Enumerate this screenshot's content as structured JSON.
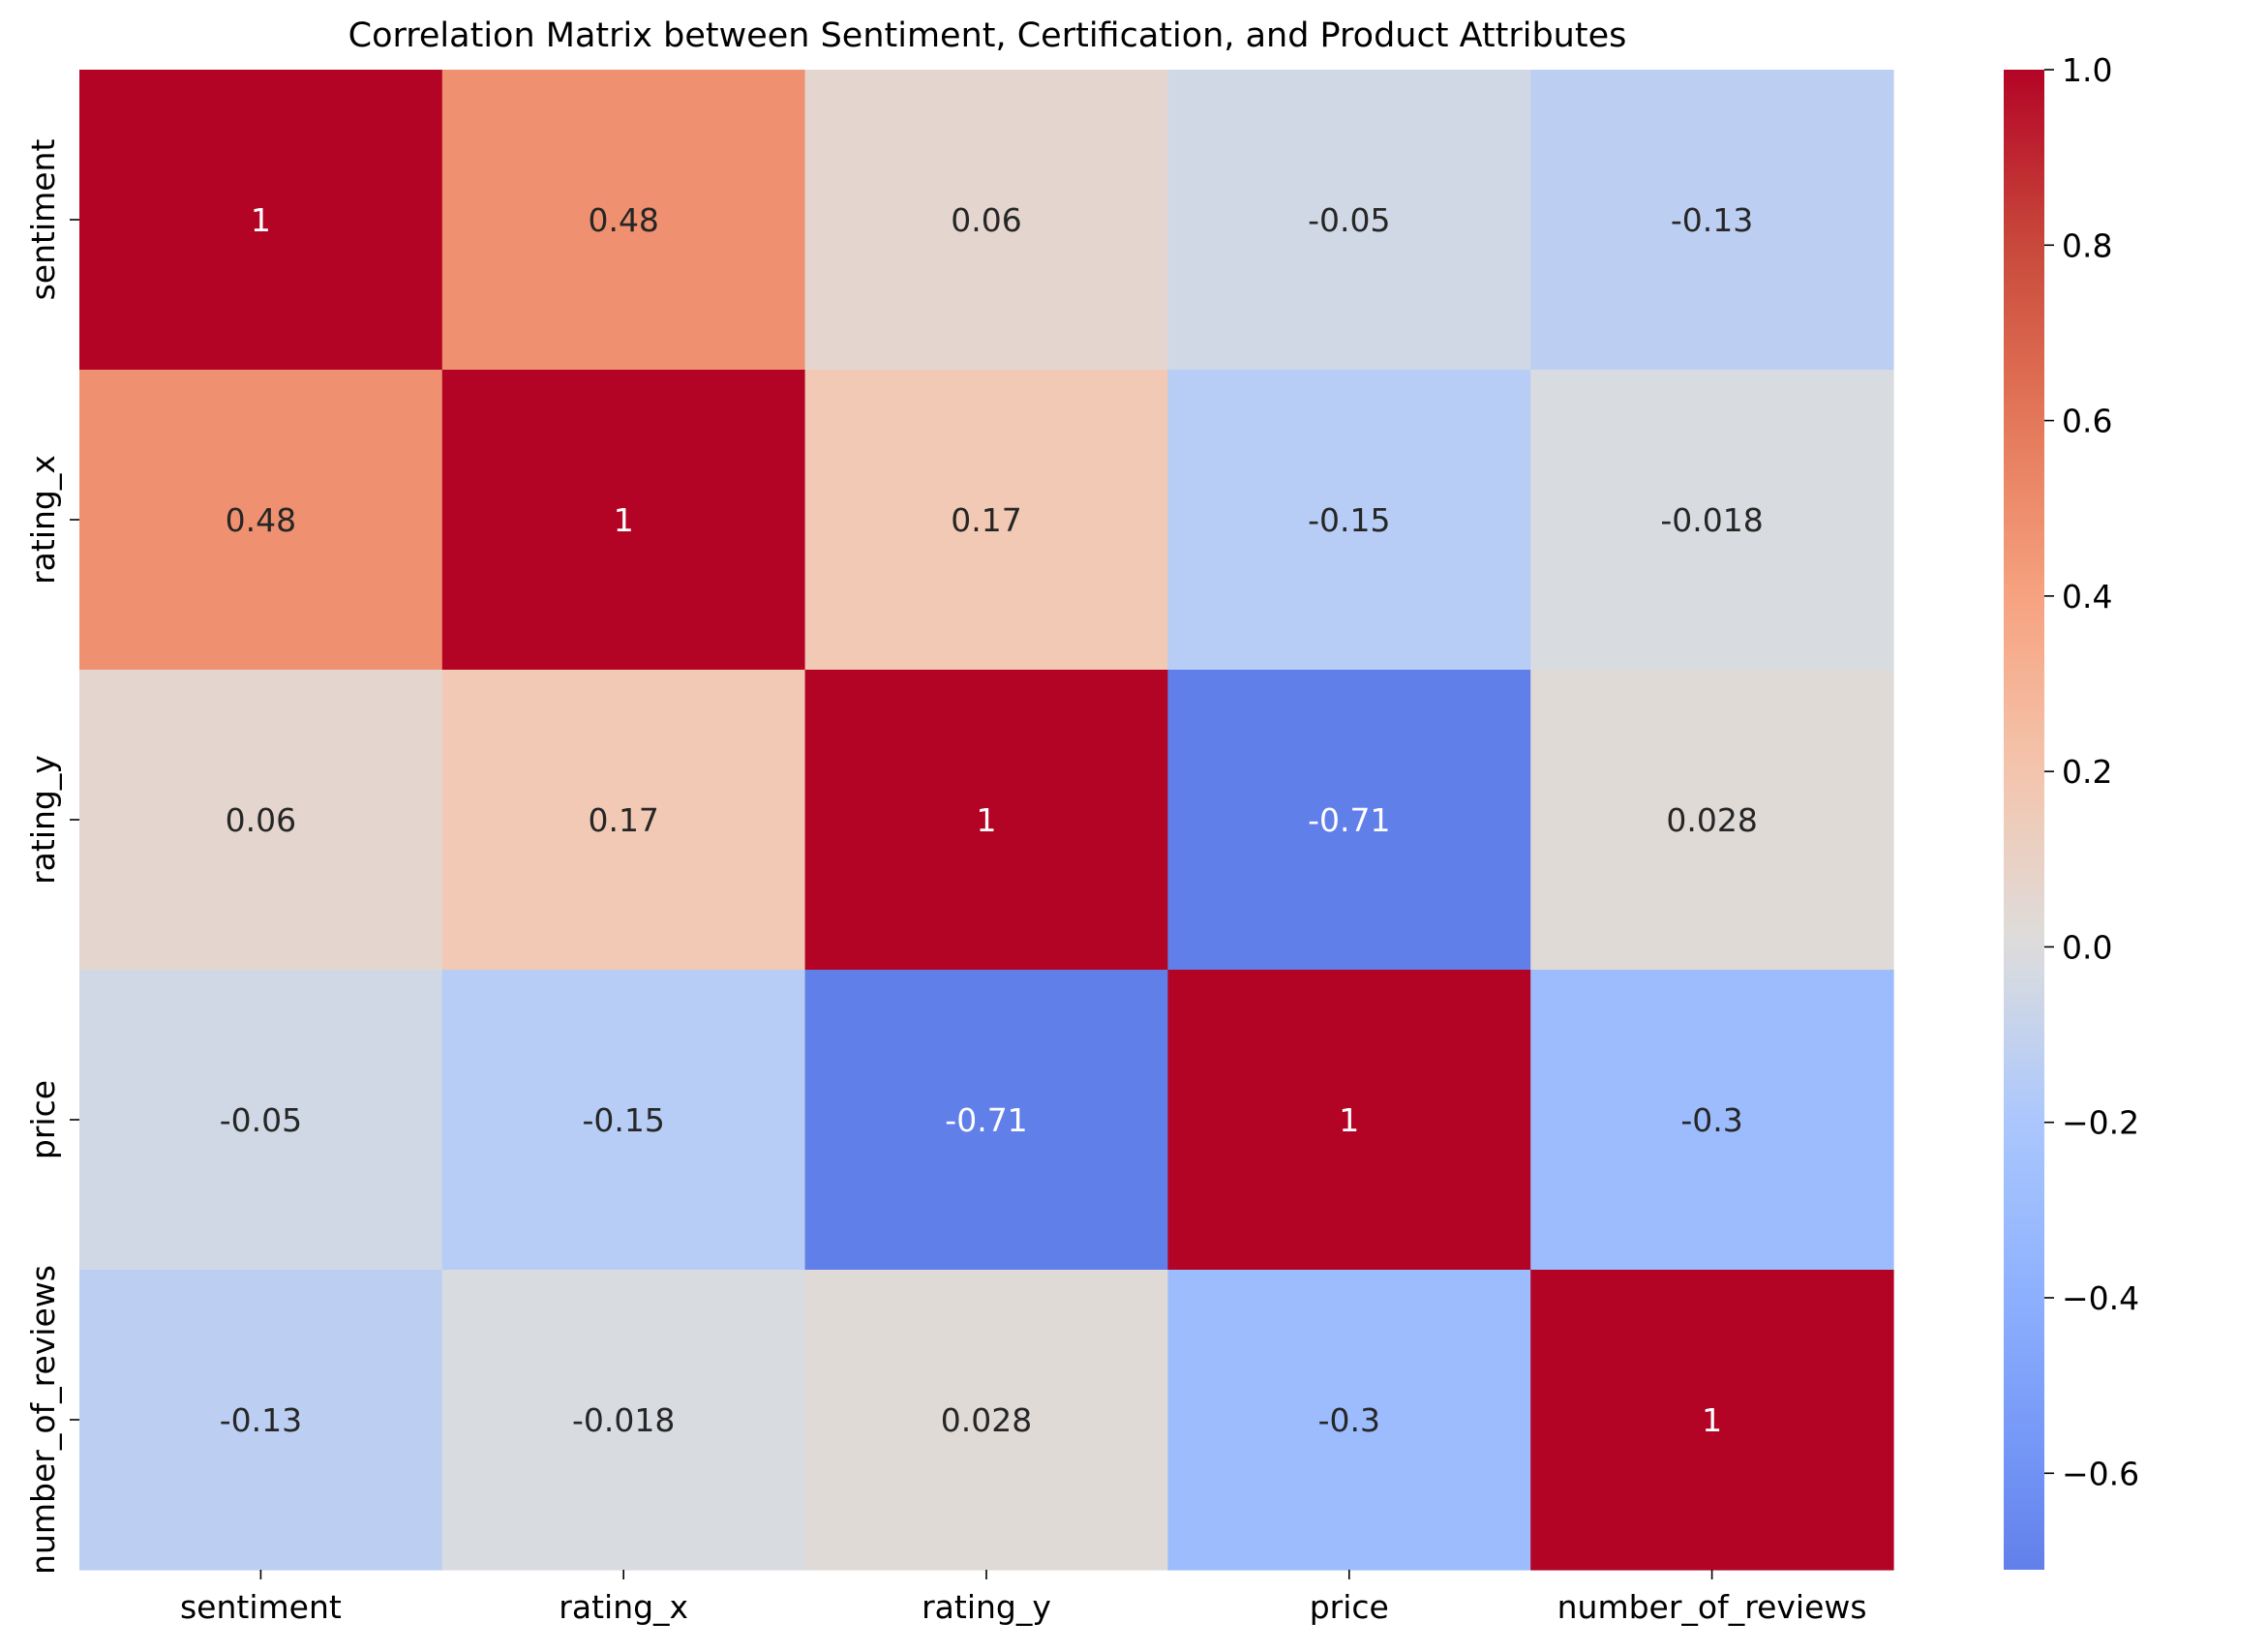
{
  "chart_data": {
    "type": "heatmap",
    "title": "Correlation Matrix between Sentiment, Certification, and Product Attributes",
    "xlabel": "",
    "ylabel": "",
    "x_labels": [
      "sentiment",
      "rating_x",
      "rating_y",
      "price",
      "number_of_reviews"
    ],
    "y_labels": [
      "sentiment",
      "rating_x",
      "rating_y",
      "price",
      "number_of_reviews"
    ],
    "values": [
      [
        1,
        0.48,
        0.06,
        -0.05,
        -0.13
      ],
      [
        0.48,
        1,
        0.17,
        -0.15,
        -0.018
      ],
      [
        0.06,
        0.17,
        1,
        -0.71,
        0.028
      ],
      [
        -0.05,
        -0.15,
        -0.71,
        1,
        -0.3
      ],
      [
        -0.13,
        -0.018,
        0.028,
        -0.3,
        1
      ]
    ],
    "annotations": [
      [
        "1",
        "0.48",
        "0.06",
        "-0.05",
        "-0.13"
      ],
      [
        "0.48",
        "1",
        "0.17",
        "-0.15",
        "-0.018"
      ],
      [
        "0.06",
        "0.17",
        "1",
        "-0.71",
        "0.028"
      ],
      [
        "-0.05",
        "-0.15",
        "-0.71",
        "1",
        "-0.3"
      ],
      [
        "-0.13",
        "-0.018",
        "0.028",
        "-0.3",
        "1"
      ]
    ],
    "colormap": "coolwarm",
    "center": 0,
    "vmin": -0.71,
    "vmax": 1.0,
    "colorbar_ticks": [
      1.0,
      0.8,
      0.6,
      0.4,
      0.2,
      0.0,
      -0.2,
      -0.4,
      -0.6
    ],
    "colorbar_tick_labels": [
      "1.0",
      "0.8",
      "0.6",
      "0.4",
      "0.2",
      "0.0",
      "−0.2",
      "−0.4",
      "−0.6"
    ],
    "grid": false
  }
}
